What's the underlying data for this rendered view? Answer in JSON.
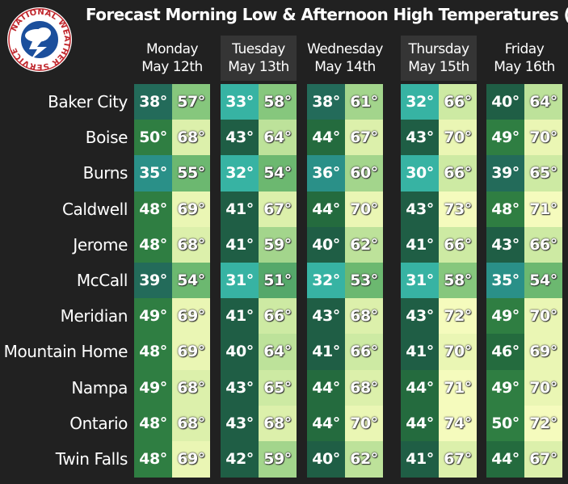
{
  "title": "Forecast Morning Low & Afternoon High Temperatures (°F)",
  "logo": {
    "text": "NATIONAL WEATHER SERVICE",
    "icon": "nws-logo-icon"
  },
  "days": [
    {
      "day": "Monday",
      "date": "May 12th"
    },
    {
      "day": "Tuesday",
      "date": "May 13th"
    },
    {
      "day": "Wednesday",
      "date": "May 14th"
    },
    {
      "day": "Thursday",
      "date": "May 15th"
    },
    {
      "day": "Friday",
      "date": "May 16th"
    }
  ],
  "cities": [
    {
      "name": "Baker City",
      "temps": [
        [
          "38°",
          "57°"
        ],
        [
          "33°",
          "58°"
        ],
        [
          "38°",
          "61°"
        ],
        [
          "32°",
          "66°"
        ],
        [
          "40°",
          "64°"
        ]
      ]
    },
    {
      "name": "Boise",
      "temps": [
        [
          "50°",
          "68°"
        ],
        [
          "43°",
          "64°"
        ],
        [
          "44°",
          "67°"
        ],
        [
          "43°",
          "70°"
        ],
        [
          "49°",
          "70°"
        ]
      ]
    },
    {
      "name": "Burns",
      "temps": [
        [
          "35°",
          "55°"
        ],
        [
          "32°",
          "54°"
        ],
        [
          "36°",
          "60°"
        ],
        [
          "30°",
          "66°"
        ],
        [
          "39°",
          "65°"
        ]
      ]
    },
    {
      "name": "Caldwell",
      "temps": [
        [
          "48°",
          "69°"
        ],
        [
          "41°",
          "67°"
        ],
        [
          "44°",
          "70°"
        ],
        [
          "43°",
          "73°"
        ],
        [
          "48°",
          "71°"
        ]
      ]
    },
    {
      "name": "Jerome",
      "temps": [
        [
          "48°",
          "68°"
        ],
        [
          "41°",
          "59°"
        ],
        [
          "40°",
          "62°"
        ],
        [
          "41°",
          "66°"
        ],
        [
          "43°",
          "66°"
        ]
      ]
    },
    {
      "name": "McCall",
      "temps": [
        [
          "39°",
          "54°"
        ],
        [
          "31°",
          "51°"
        ],
        [
          "32°",
          "53°"
        ],
        [
          "31°",
          "58°"
        ],
        [
          "35°",
          "54°"
        ]
      ]
    },
    {
      "name": "Meridian",
      "temps": [
        [
          "49°",
          "69°"
        ],
        [
          "41°",
          "66°"
        ],
        [
          "43°",
          "68°"
        ],
        [
          "43°",
          "72°"
        ],
        [
          "49°",
          "70°"
        ]
      ]
    },
    {
      "name": "Mountain Home",
      "temps": [
        [
          "48°",
          "69°"
        ],
        [
          "40°",
          "64°"
        ],
        [
          "41°",
          "66°"
        ],
        [
          "41°",
          "70°"
        ],
        [
          "46°",
          "69°"
        ]
      ]
    },
    {
      "name": "Nampa",
      "temps": [
        [
          "49°",
          "68°"
        ],
        [
          "43°",
          "65°"
        ],
        [
          "44°",
          "68°"
        ],
        [
          "44°",
          "71°"
        ],
        [
          "49°",
          "70°"
        ]
      ]
    },
    {
      "name": "Ontario",
      "temps": [
        [
          "48°",
          "68°"
        ],
        [
          "43°",
          "68°"
        ],
        [
          "44°",
          "70°"
        ],
        [
          "44°",
          "74°"
        ],
        [
          "50°",
          "72°"
        ]
      ]
    },
    {
      "name": "Twin Falls",
      "temps": [
        [
          "48°",
          "69°"
        ],
        [
          "42°",
          "59°"
        ],
        [
          "40°",
          "62°"
        ],
        [
          "41°",
          "67°"
        ],
        [
          "44°",
          "67°"
        ]
      ]
    }
  ],
  "colors": {
    "background": "#212121",
    "header_shade": "#353535",
    "low_scale": [
      "#37b4a4",
      "#1f6b57",
      "#2e7d48",
      "#3a9a4a"
    ],
    "high_scale": [
      "#5fae6a",
      "#9cd68a",
      "#d9f0a8",
      "#ffffbf"
    ]
  }
}
